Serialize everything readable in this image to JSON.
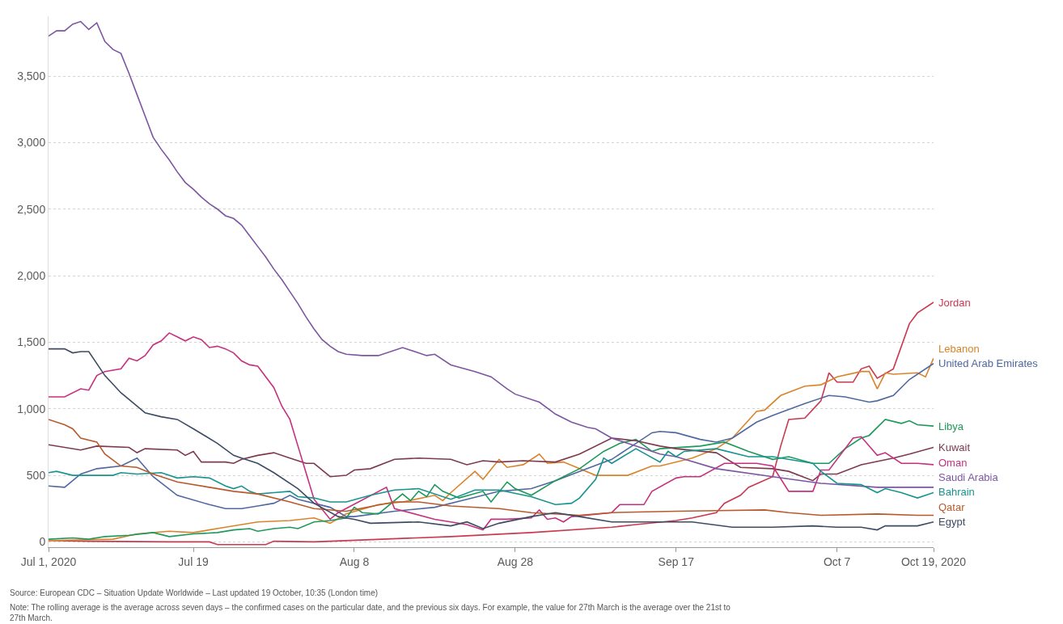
{
  "chart_data": {
    "type": "line",
    "xlim": [
      "2020-07-01",
      "2020-10-19"
    ],
    "xticks": [
      {
        "value": "2020-07-01",
        "label": "Jul 1, 2020"
      },
      {
        "value": "2020-07-19",
        "label": "Jul 19"
      },
      {
        "value": "2020-08-08",
        "label": "Aug 8"
      },
      {
        "value": "2020-08-28",
        "label": "Aug 28"
      },
      {
        "value": "2020-09-17",
        "label": "Sep 17"
      },
      {
        "value": "2020-10-07",
        "label": "Oct 7"
      },
      {
        "value": "2020-10-19",
        "label": "Oct 19, 2020"
      }
    ],
    "ylim": [
      -40,
      3950
    ],
    "yticks": [
      0,
      500,
      {
        "value": 1000,
        "label": "1,000"
      },
      {
        "value": 1500,
        "label": "1,500"
      },
      {
        "value": 2000,
        "label": "2,000"
      },
      {
        "value": 2500,
        "label": "2,500"
      },
      {
        "value": 3000,
        "label": "3,000"
      },
      {
        "value": 3500,
        "label": "3,500"
      }
    ],
    "grid": "y",
    "legend": false,
    "marker": "none",
    "line_style": "solid",
    "annotations": [
      "Source: European CDC – Situation Update Worldwide – Last updated 19 October, 10:35 (London time)",
      "Note: The rolling average is the average across seven days – the confirmed cases on the particular date, and the previous six days. For example, the value for 27th March is the average over the 21st to 27th March."
    ],
    "series": [
      {
        "name": "Jordan",
        "color": "#c9394f",
        "x": [
          "2020-07-01",
          "2020-07-06",
          "2020-07-16",
          "2020-07-21",
          "2020-07-22",
          "2020-07-28",
          "2020-07-29",
          "2020-08-03",
          "2020-08-20",
          "2020-08-30",
          "2020-09-09",
          "2020-09-12",
          "2020-09-17",
          "2020-09-19",
          "2020-09-22",
          "2020-09-23",
          "2020-09-25",
          "2020-09-26",
          "2020-09-29",
          "2020-09-30",
          "2020-10-01",
          "2020-10-03",
          "2020-10-05",
          "2020-10-06",
          "2020-10-07",
          "2020-10-09",
          "2020-10-10",
          "2020-10-11",
          "2020-10-12",
          "2020-10-14",
          "2020-10-16",
          "2020-10-17",
          "2020-10-19"
        ],
        "values": [
          10,
          5,
          0,
          0,
          -20,
          -20,
          5,
          0,
          40,
          70,
          110,
          130,
          160,
          180,
          220,
          290,
          350,
          410,
          490,
          720,
          920,
          930,
          1060,
          1270,
          1200,
          1200,
          1300,
          1320,
          1230,
          1300,
          1640,
          1720,
          1800
        ]
      },
      {
        "name": "Lebanon",
        "color": "#d9842a",
        "x": [
          "2020-07-01",
          "2020-07-09",
          "2020-07-12",
          "2020-07-16",
          "2020-07-19",
          "2020-07-23",
          "2020-07-27",
          "2020-07-31",
          "2020-08-03",
          "2020-08-05",
          "2020-08-07",
          "2020-08-11",
          "2020-08-14",
          "2020-08-18",
          "2020-08-19",
          "2020-08-20",
          "2020-08-23",
          "2020-08-24",
          "2020-08-26",
          "2020-08-27",
          "2020-08-29",
          "2020-08-31",
          "2020-09-01",
          "2020-09-03",
          "2020-09-05",
          "2020-09-07",
          "2020-09-11",
          "2020-09-14",
          "2020-09-15",
          "2020-09-19",
          "2020-09-22",
          "2020-09-24",
          "2020-09-27",
          "2020-09-28",
          "2020-09-30",
          "2020-10-03",
          "2020-10-05",
          "2020-10-07",
          "2020-10-10",
          "2020-10-11",
          "2020-10-12",
          "2020-10-13",
          "2020-10-14",
          "2020-10-17",
          "2020-10-18",
          "2020-10-19"
        ],
        "values": [
          10,
          20,
          60,
          80,
          70,
          110,
          150,
          160,
          180,
          140,
          210,
          280,
          300,
          350,
          310,
          370,
          530,
          470,
          620,
          560,
          580,
          660,
          590,
          600,
          550,
          500,
          500,
          570,
          570,
          630,
          700,
          780,
          980,
          990,
          1100,
          1170,
          1180,
          1240,
          1280,
          1280,
          1150,
          1270,
          1260,
          1270,
          1240,
          1380
        ]
      },
      {
        "name": "United Arab Emirates",
        "color": "#5068a0",
        "x": [
          "2020-07-01",
          "2020-07-03",
          "2020-07-05",
          "2020-07-07",
          "2020-07-10",
          "2020-07-12",
          "2020-07-14",
          "2020-07-17",
          "2020-07-21",
          "2020-07-23",
          "2020-07-25",
          "2020-07-27",
          "2020-07-29",
          "2020-07-31",
          "2020-08-01",
          "2020-08-05",
          "2020-08-07",
          "2020-08-08",
          "2020-08-13",
          "2020-08-18",
          "2020-08-22",
          "2020-08-26",
          "2020-08-30",
          "2020-09-02",
          "2020-09-05",
          "2020-09-09",
          "2020-09-12",
          "2020-09-14",
          "2020-09-15",
          "2020-09-17",
          "2020-09-20",
          "2020-09-22",
          "2020-09-24",
          "2020-09-27",
          "2020-09-29",
          "2020-10-03",
          "2020-10-06",
          "2020-10-08",
          "2020-10-11",
          "2020-10-12",
          "2020-10-14",
          "2020-10-16",
          "2020-10-19"
        ],
        "values": [
          420,
          410,
          510,
          550,
          570,
          630,
          490,
          350,
          280,
          250,
          250,
          270,
          290,
          350,
          320,
          260,
          190,
          190,
          230,
          260,
          320,
          380,
          400,
          460,
          530,
          620,
          740,
          820,
          830,
          820,
          770,
          750,
          780,
          900,
          950,
          1040,
          1100,
          1090,
          1050,
          1060,
          1100,
          1220,
          1340
        ]
      },
      {
        "name": "Libya",
        "color": "#1d9a5b",
        "x": [
          "2020-07-01",
          "2020-07-04",
          "2020-07-06",
          "2020-07-08",
          "2020-07-11",
          "2020-07-14",
          "2020-07-16",
          "2020-07-19",
          "2020-07-22",
          "2020-07-24",
          "2020-07-26",
          "2020-07-27",
          "2020-07-29",
          "2020-07-31",
          "2020-08-01",
          "2020-08-03",
          "2020-08-05",
          "2020-08-07",
          "2020-08-08",
          "2020-08-09",
          "2020-08-11",
          "2020-08-14",
          "2020-08-15",
          "2020-08-16",
          "2020-08-17",
          "2020-08-18",
          "2020-08-19",
          "2020-08-21",
          "2020-08-24",
          "2020-08-25",
          "2020-08-27",
          "2020-08-28",
          "2020-08-30",
          "2020-09-02",
          "2020-09-05",
          "2020-09-08",
          "2020-09-10",
          "2020-09-12",
          "2020-09-14",
          "2020-09-15",
          "2020-09-20",
          "2020-09-23",
          "2020-09-26",
          "2020-09-29",
          "2020-10-01",
          "2020-10-04",
          "2020-10-06",
          "2020-10-08",
          "2020-10-10",
          "2020-10-11",
          "2020-10-13",
          "2020-10-15",
          "2020-10-16",
          "2020-10-17",
          "2020-10-19"
        ],
        "values": [
          20,
          30,
          20,
          40,
          50,
          70,
          40,
          60,
          70,
          90,
          100,
          80,
          100,
          110,
          100,
          150,
          160,
          180,
          260,
          220,
          210,
          360,
          310,
          380,
          340,
          430,
          380,
          330,
          380,
          300,
          450,
          400,
          350,
          460,
          550,
          680,
          740,
          770,
          680,
          700,
          720,
          750,
          680,
          620,
          640,
          590,
          590,
          700,
          780,
          800,
          920,
          890,
          910,
          880,
          870
        ]
      },
      {
        "name": "Kuwait",
        "color": "#7d3a4e",
        "x": [
          "2020-07-01",
          "2020-07-05",
          "2020-07-07",
          "2020-07-11",
          "2020-07-12",
          "2020-07-13",
          "2020-07-17",
          "2020-07-18",
          "2020-07-19",
          "2020-07-20",
          "2020-07-23",
          "2020-07-24",
          "2020-07-25",
          "2020-07-27",
          "2020-07-29",
          "2020-07-31",
          "2020-08-02",
          "2020-08-03",
          "2020-08-05",
          "2020-08-07",
          "2020-08-08",
          "2020-08-10",
          "2020-08-13",
          "2020-08-16",
          "2020-08-20",
          "2020-08-22",
          "2020-08-24",
          "2020-08-26",
          "2020-08-29",
          "2020-09-02",
          "2020-09-05",
          "2020-09-09",
          "2020-09-12",
          "2020-09-15",
          "2020-09-17",
          "2020-09-22",
          "2020-09-25",
          "2020-09-29",
          "2020-10-01",
          "2020-10-04",
          "2020-10-05",
          "2020-10-07",
          "2020-10-10",
          "2020-10-14",
          "2020-10-16",
          "2020-10-19"
        ],
        "values": [
          730,
          690,
          720,
          710,
          670,
          700,
          690,
          650,
          680,
          600,
          600,
          590,
          620,
          650,
          670,
          630,
          590,
          590,
          490,
          500,
          540,
          550,
          620,
          630,
          620,
          580,
          610,
          600,
          610,
          600,
          660,
          780,
          760,
          720,
          700,
          670,
          560,
          550,
          530,
          460,
          510,
          510,
          580,
          630,
          660,
          710
        ]
      },
      {
        "name": "Oman",
        "color": "#c6307f",
        "x": [
          "2020-07-01",
          "2020-07-03",
          "2020-07-05",
          "2020-07-06",
          "2020-07-07",
          "2020-07-08",
          "2020-07-10",
          "2020-07-11",
          "2020-07-12",
          "2020-07-13",
          "2020-07-14",
          "2020-07-15",
          "2020-07-16",
          "2020-07-17",
          "2020-07-18",
          "2020-07-19",
          "2020-07-20",
          "2020-07-21",
          "2020-07-22",
          "2020-07-23",
          "2020-07-24",
          "2020-07-25",
          "2020-07-26",
          "2020-07-27",
          "2020-07-29",
          "2020-07-30",
          "2020-07-31",
          "2020-08-01",
          "2020-08-02",
          "2020-08-03",
          "2020-08-05",
          "2020-08-06",
          "2020-08-12",
          "2020-08-13",
          "2020-08-18",
          "2020-08-22",
          "2020-08-24",
          "2020-08-25",
          "2020-08-27",
          "2020-08-30",
          "2020-08-31",
          "2020-09-01",
          "2020-09-02",
          "2020-09-03",
          "2020-09-04",
          "2020-09-09",
          "2020-09-10",
          "2020-09-13",
          "2020-09-14",
          "2020-09-17",
          "2020-09-18",
          "2020-09-20",
          "2020-09-23",
          "2020-09-25",
          "2020-09-27",
          "2020-09-29",
          "2020-10-01",
          "2020-10-04",
          "2020-10-05",
          "2020-10-06",
          "2020-10-09",
          "2020-10-10",
          "2020-10-12",
          "2020-10-13",
          "2020-10-15",
          "2020-10-17",
          "2020-10-19"
        ],
        "values": [
          1090,
          1090,
          1150,
          1140,
          1250,
          1280,
          1300,
          1380,
          1360,
          1400,
          1480,
          1510,
          1570,
          1540,
          1510,
          1540,
          1520,
          1460,
          1470,
          1450,
          1420,
          1360,
          1330,
          1320,
          1160,
          1020,
          920,
          720,
          520,
          320,
          170,
          220,
          410,
          250,
          170,
          130,
          90,
          170,
          170,
          180,
          240,
          170,
          180,
          150,
          190,
          220,
          280,
          280,
          380,
          480,
          490,
          490,
          590,
          590,
          590,
          570,
          380,
          380,
          540,
          540,
          780,
          790,
          650,
          670,
          590,
          590,
          580
        ]
      },
      {
        "name": "Saudi Arabia",
        "color": "#7c56a0",
        "x": [
          "2020-07-01",
          "2020-07-02",
          "2020-07-03",
          "2020-07-04",
          "2020-07-05",
          "2020-07-06",
          "2020-07-07",
          "2020-07-08",
          "2020-07-09",
          "2020-07-10",
          "2020-07-11",
          "2020-07-12",
          "2020-07-13",
          "2020-07-14",
          "2020-07-15",
          "2020-07-16",
          "2020-07-17",
          "2020-07-18",
          "2020-07-19",
          "2020-07-20",
          "2020-07-21",
          "2020-07-22",
          "2020-07-23",
          "2020-07-24",
          "2020-07-25",
          "2020-07-26",
          "2020-07-27",
          "2020-07-28",
          "2020-07-29",
          "2020-07-30",
          "2020-07-31",
          "2020-08-01",
          "2020-08-02",
          "2020-08-03",
          "2020-08-04",
          "2020-08-05",
          "2020-08-06",
          "2020-08-07",
          "2020-08-09",
          "2020-08-11",
          "2020-08-14",
          "2020-08-17",
          "2020-08-18",
          "2020-08-20",
          "2020-08-23",
          "2020-08-25",
          "2020-08-27",
          "2020-08-28",
          "2020-08-31",
          "2020-09-02",
          "2020-09-04",
          "2020-09-06",
          "2020-09-07",
          "2020-09-09",
          "2020-09-12",
          "2020-09-15",
          "2020-09-17",
          "2020-09-22",
          "2020-09-29",
          "2020-10-05",
          "2020-10-12",
          "2020-10-19"
        ],
        "values": [
          3800,
          3840,
          3840,
          3890,
          3910,
          3850,
          3900,
          3760,
          3700,
          3670,
          3520,
          3360,
          3200,
          3040,
          2950,
          2870,
          2780,
          2700,
          2650,
          2590,
          2540,
          2500,
          2450,
          2430,
          2380,
          2300,
          2220,
          2140,
          2050,
          1970,
          1880,
          1790,
          1690,
          1600,
          1520,
          1470,
          1430,
          1410,
          1400,
          1400,
          1460,
          1400,
          1410,
          1330,
          1280,
          1240,
          1150,
          1110,
          1050,
          960,
          900,
          860,
          850,
          780,
          720,
          660,
          640,
          550,
          490,
          440,
          410,
          410
        ]
      },
      {
        "name": "Bahrain",
        "color": "#17948e",
        "x": [
          "2020-07-01",
          "2020-07-02",
          "2020-07-04",
          "2020-07-09",
          "2020-07-10",
          "2020-07-12",
          "2020-07-15",
          "2020-07-17",
          "2020-07-19",
          "2020-07-21",
          "2020-07-23",
          "2020-07-24",
          "2020-07-25",
          "2020-07-26",
          "2020-07-27",
          "2020-07-29",
          "2020-07-31",
          "2020-08-01",
          "2020-08-03",
          "2020-08-05",
          "2020-08-07",
          "2020-08-10",
          "2020-08-13",
          "2020-08-16",
          "2020-08-20",
          "2020-08-23",
          "2020-08-26",
          "2020-08-30",
          "2020-09-02",
          "2020-09-04",
          "2020-09-05",
          "2020-09-07",
          "2020-09-08",
          "2020-09-09",
          "2020-09-12",
          "2020-09-15",
          "2020-09-16",
          "2020-09-17",
          "2020-09-18",
          "2020-09-22",
          "2020-09-26",
          "2020-09-29",
          "2020-10-04",
          "2020-10-05",
          "2020-10-07",
          "2020-10-10",
          "2020-10-12",
          "2020-10-13",
          "2020-10-15",
          "2020-10-17",
          "2020-10-19"
        ],
        "values": [
          520,
          530,
          500,
          500,
          520,
          510,
          520,
          480,
          490,
          480,
          420,
          400,
          420,
          380,
          360,
          370,
          380,
          340,
          330,
          300,
          300,
          350,
          390,
          400,
          320,
          390,
          390,
          340,
          280,
          290,
          330,
          470,
          630,
          590,
          700,
          600,
          680,
          640,
          680,
          700,
          640,
          640,
          590,
          530,
          440,
          430,
          370,
          400,
          370,
          330,
          370
        ]
      },
      {
        "name": "Qatar",
        "color": "#b85a2c",
        "x": [
          "2020-07-01",
          "2020-07-03",
          "2020-07-04",
          "2020-07-05",
          "2020-07-07",
          "2020-07-08",
          "2020-07-10",
          "2020-07-12",
          "2020-07-14",
          "2020-07-17",
          "2020-07-21",
          "2020-07-24",
          "2020-07-27",
          "2020-07-31",
          "2020-08-03",
          "2020-08-07",
          "2020-08-13",
          "2020-08-16",
          "2020-08-20",
          "2020-08-26",
          "2020-08-30",
          "2020-09-05",
          "2020-09-09",
          "2020-09-17",
          "2020-09-22",
          "2020-09-28",
          "2020-10-01",
          "2020-10-05",
          "2020-10-12",
          "2020-10-17",
          "2020-10-19"
        ],
        "values": [
          920,
          880,
          850,
          780,
          750,
          660,
          570,
          560,
          510,
          450,
          410,
          380,
          360,
          300,
          250,
          230,
          300,
          300,
          270,
          250,
          220,
          200,
          220,
          230,
          235,
          240,
          220,
          200,
          210,
          200,
          200
        ]
      },
      {
        "name": "Egypt",
        "color": "#3d4b63",
        "x": [
          "2020-07-01",
          "2020-07-03",
          "2020-07-04",
          "2020-07-05",
          "2020-07-06",
          "2020-07-08",
          "2020-07-10",
          "2020-07-13",
          "2020-07-15",
          "2020-07-17",
          "2020-07-19",
          "2020-07-22",
          "2020-07-24",
          "2020-07-25",
          "2020-07-27",
          "2020-07-29",
          "2020-08-01",
          "2020-08-03",
          "2020-08-06",
          "2020-08-08",
          "2020-08-10",
          "2020-08-16",
          "2020-08-20",
          "2020-08-22",
          "2020-08-24",
          "2020-08-26",
          "2020-08-30",
          "2020-09-02",
          "2020-09-05",
          "2020-09-09",
          "2020-09-17",
          "2020-09-19",
          "2020-09-24",
          "2020-09-29",
          "2020-10-04",
          "2020-10-07",
          "2020-10-10",
          "2020-10-12",
          "2020-10-13",
          "2020-10-17",
          "2020-10-19"
        ],
        "values": [
          1450,
          1450,
          1420,
          1430,
          1430,
          1250,
          1120,
          970,
          940,
          920,
          850,
          740,
          650,
          630,
          590,
          520,
          400,
          290,
          190,
          170,
          140,
          150,
          120,
          150,
          100,
          140,
          190,
          220,
          190,
          150,
          150,
          150,
          110,
          110,
          120,
          110,
          110,
          90,
          120,
          120,
          150
        ]
      }
    ]
  }
}
